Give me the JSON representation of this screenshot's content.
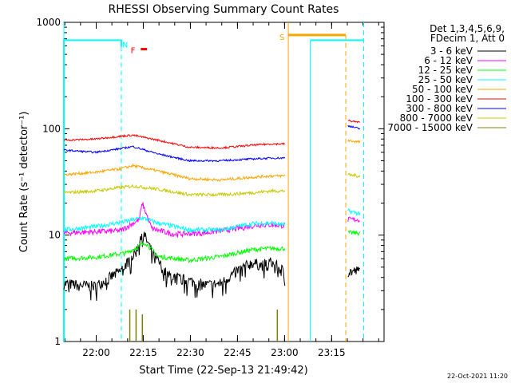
{
  "chart_data": {
    "type": "line",
    "title": "RHESSI Observing Summary Count Rates",
    "ylabel": "Count Rate (s⁻¹ detector⁻¹)",
    "xlabel": "Start Time (22-Sep-13 21:49:42)",
    "yscale": "log",
    "ylim": [
      1,
      1000
    ],
    "xlim_min": [
      0,
      102
    ],
    "x_ticks": [
      {
        "min": 10.3,
        "label": "22:00"
      },
      {
        "min": 25.3,
        "label": "22:15"
      },
      {
        "min": 40.3,
        "label": "22:30"
      },
      {
        "min": 55.3,
        "label": "22:45"
      },
      {
        "min": 70.3,
        "label": "23:00"
      },
      {
        "min": 85.3,
        "label": "23:15"
      }
    ],
    "y_ticks": [
      {
        "value": 1,
        "label": "1"
      },
      {
        "value": 10,
        "label": "10"
      },
      {
        "value": 100,
        "label": "100"
      },
      {
        "value": 1000,
        "label": "1000"
      }
    ],
    "legend_header": [
      "Det 1,3,4,5,6,9,",
      "FDecim 1, Att 0"
    ],
    "series": [
      {
        "name": "3 - 6 keV",
        "color": "#000000",
        "values": [
          [
            0,
            3.5
          ],
          [
            10,
            3.3
          ],
          [
            18,
            4.6
          ],
          [
            23,
            7
          ],
          [
            25,
            11
          ],
          [
            28,
            7
          ],
          [
            33,
            4.2
          ],
          [
            45,
            3.4
          ],
          [
            50,
            3.5
          ],
          [
            55,
            4.6
          ],
          [
            60,
            5.5
          ],
          [
            63,
            5.2
          ],
          [
            66,
            5.6
          ],
          [
            70,
            4.6
          ],
          [
            90,
            4.5
          ],
          [
            94,
            4.6
          ]
        ]
      },
      {
        "name": "6 - 12 keV",
        "color": "#ff00ff",
        "values": [
          [
            0,
            10.5
          ],
          [
            18,
            11
          ],
          [
            24,
            14
          ],
          [
            25,
            20
          ],
          [
            28,
            11.5
          ],
          [
            35,
            10.2
          ],
          [
            45,
            10.5
          ],
          [
            55,
            11.5
          ],
          [
            62,
            12.5
          ],
          [
            66,
            12.5
          ],
          [
            70,
            12.3
          ],
          [
            90,
            14
          ],
          [
            94,
            14
          ]
        ]
      },
      {
        "name": "12 - 25 keV",
        "color": "#00ff00",
        "values": [
          [
            0,
            6
          ],
          [
            10,
            6.2
          ],
          [
            20,
            6.8
          ],
          [
            26,
            8.5
          ],
          [
            30,
            6.3
          ],
          [
            40,
            5.8
          ],
          [
            50,
            6.3
          ],
          [
            60,
            7.3
          ],
          [
            66,
            7.5
          ],
          [
            70,
            7.5
          ],
          [
            90,
            10.5
          ],
          [
            94,
            10.5
          ]
        ]
      },
      {
        "name": "25 - 50 keV",
        "color": "#00ffff",
        "values": [
          [
            0,
            11.2
          ],
          [
            10,
            12
          ],
          [
            20,
            13.5
          ],
          [
            25,
            14.5
          ],
          [
            30,
            13
          ],
          [
            40,
            11.2
          ],
          [
            50,
            11.2
          ],
          [
            60,
            12.8
          ],
          [
            66,
            13
          ],
          [
            70,
            12.5
          ],
          [
            90,
            17
          ],
          [
            94,
            16
          ]
        ]
      },
      {
        "name": "50 - 100 keV",
        "color": "#ffa500",
        "values": [
          [
            0,
            37
          ],
          [
            10,
            39
          ],
          [
            18,
            42
          ],
          [
            22,
            45
          ],
          [
            30,
            40
          ],
          [
            40,
            34
          ],
          [
            50,
            33
          ],
          [
            60,
            35
          ],
          [
            66,
            36
          ],
          [
            70,
            36
          ],
          [
            90,
            78
          ],
          [
            94,
            75
          ]
        ]
      },
      {
        "name": "100 - 300 keV",
        "color": "#ff0000",
        "values": [
          [
            0,
            78
          ],
          [
            10,
            80
          ],
          [
            18,
            85
          ],
          [
            22,
            87
          ],
          [
            30,
            78
          ],
          [
            40,
            67
          ],
          [
            50,
            66
          ],
          [
            60,
            70
          ],
          [
            66,
            72
          ],
          [
            70,
            72
          ],
          [
            90,
            120
          ],
          [
            94,
            115
          ]
        ]
      },
      {
        "name": "300 - 800 keV",
        "color": "#0000ff",
        "values": [
          [
            0,
            63
          ],
          [
            10,
            60
          ],
          [
            18,
            65
          ],
          [
            22,
            68
          ],
          [
            30,
            58
          ],
          [
            40,
            50
          ],
          [
            50,
            50
          ],
          [
            60,
            52
          ],
          [
            66,
            53
          ],
          [
            70,
            53
          ],
          [
            90,
            108
          ],
          [
            94,
            100
          ]
        ]
      },
      {
        "name": "800 - 7000 keV",
        "color": "#c8c800",
        "values": [
          [
            0,
            25
          ],
          [
            10,
            26
          ],
          [
            18,
            28
          ],
          [
            22,
            29
          ],
          [
            30,
            27
          ],
          [
            40,
            24
          ],
          [
            50,
            24
          ],
          [
            60,
            25
          ],
          [
            66,
            26
          ],
          [
            70,
            26
          ],
          [
            90,
            37
          ],
          [
            94,
            36
          ]
        ]
      },
      {
        "name": "7000 - 15000 keV",
        "color": "#808000",
        "values": [
          [
            20,
            1
          ],
          [
            21,
            2
          ],
          [
            22,
            1
          ],
          [
            23,
            2
          ],
          [
            24,
            1
          ],
          [
            25,
            1.8
          ],
          [
            26,
            1
          ],
          [
            67,
            1
          ],
          [
            68,
            2
          ],
          [
            69,
            1
          ]
        ]
      }
    ],
    "annotations": [
      {
        "label": "N",
        "color": "#00ffff"
      },
      {
        "label": "F",
        "color": "#ff0000"
      },
      {
        "label": "S",
        "color": "#ffa500"
      }
    ],
    "footer_date": "22-Oct-2021 11:20"
  }
}
